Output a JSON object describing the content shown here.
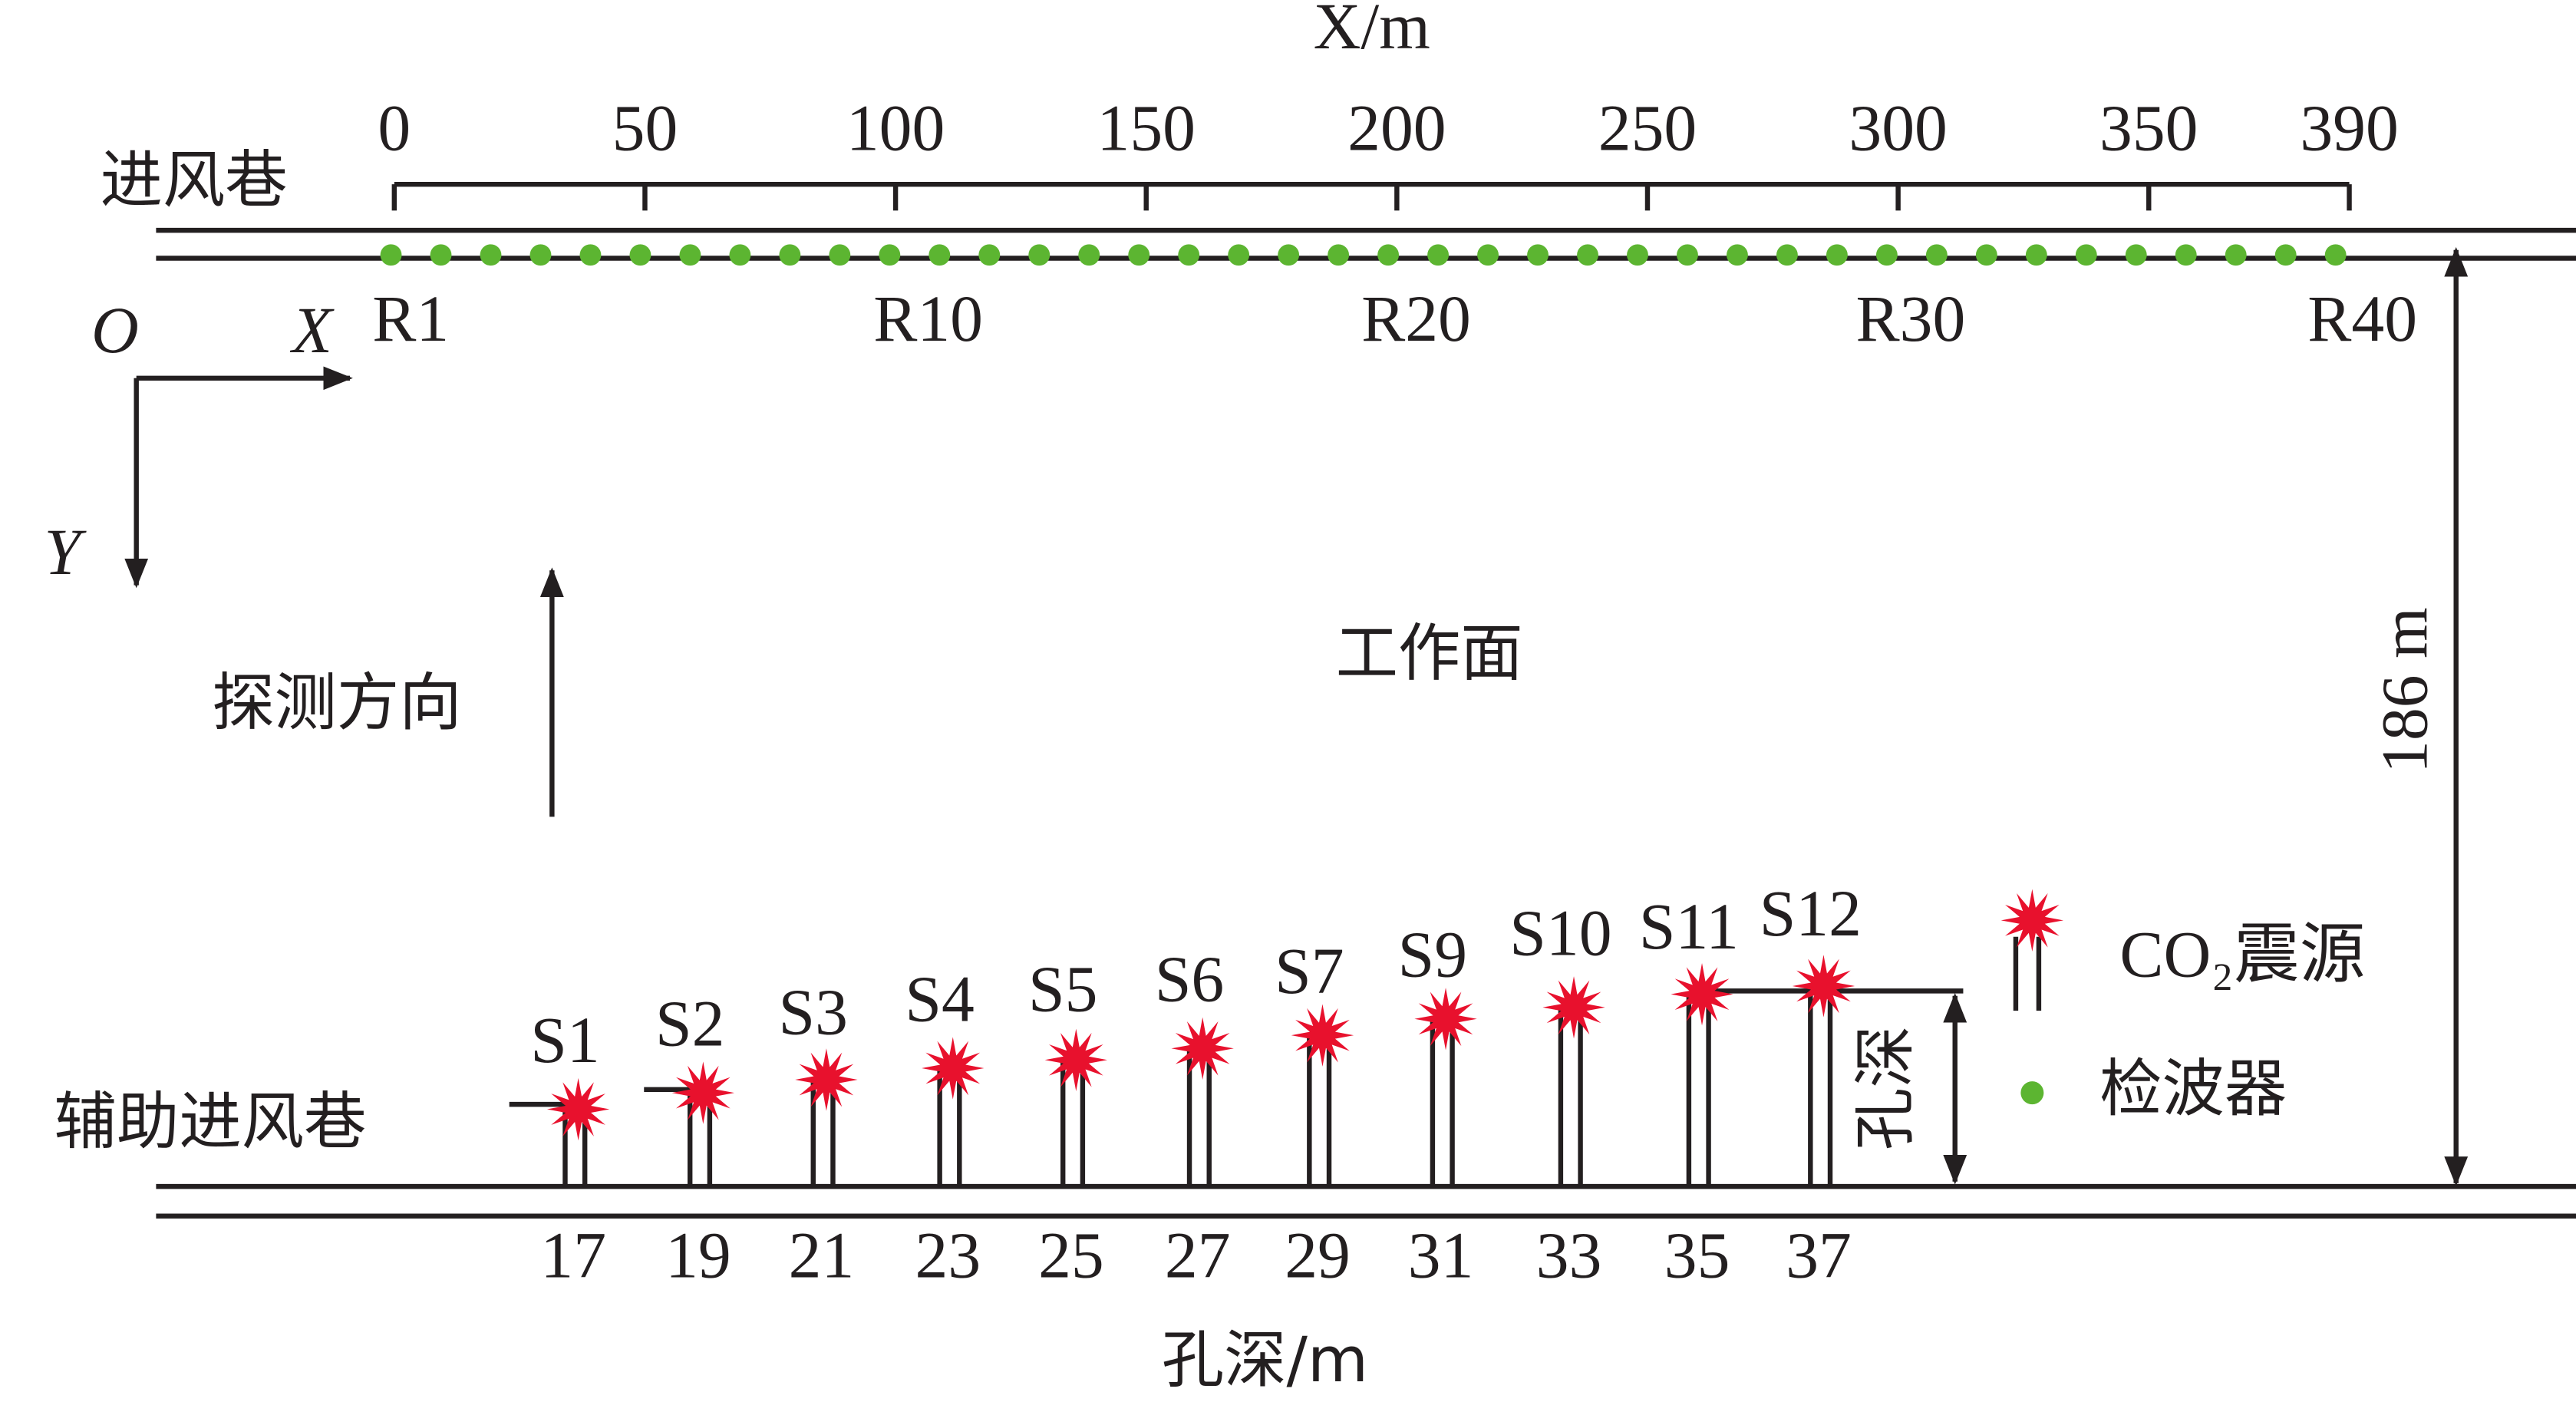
{
  "axis": {
    "label": "X/m",
    "ticks": [
      0,
      50,
      100,
      150,
      200,
      250,
      300,
      350,
      390
    ]
  },
  "labels": {
    "intake_roadway": "进风巷",
    "aux_roadway": "辅助进风巷",
    "working_face": "工作面",
    "direction": "探测方向",
    "width": "186 m",
    "depth": "孔深",
    "depth_axis": "孔深/m"
  },
  "coords": {
    "origin": "O",
    "x": "X",
    "y": "Y"
  },
  "receivers": [
    "R1",
    "R10",
    "R20",
    "R30",
    "R40"
  ],
  "sources": [
    {
      "label": "S1",
      "depth": "17"
    },
    {
      "label": "S2",
      "depth": "19"
    },
    {
      "label": "S3",
      "depth": "21"
    },
    {
      "label": "S4",
      "depth": "23"
    },
    {
      "label": "S5",
      "depth": "25"
    },
    {
      "label": "S6",
      "depth": "27"
    },
    {
      "label": "S7",
      "depth": "29"
    },
    {
      "label": "S9",
      "depth": "31"
    },
    {
      "label": "S10",
      "depth": "33"
    },
    {
      "label": "S11",
      "depth": "35"
    },
    {
      "label": "S12",
      "depth": "37"
    }
  ],
  "legend": {
    "source": "CO₂震源",
    "receiver": "检波器"
  }
}
